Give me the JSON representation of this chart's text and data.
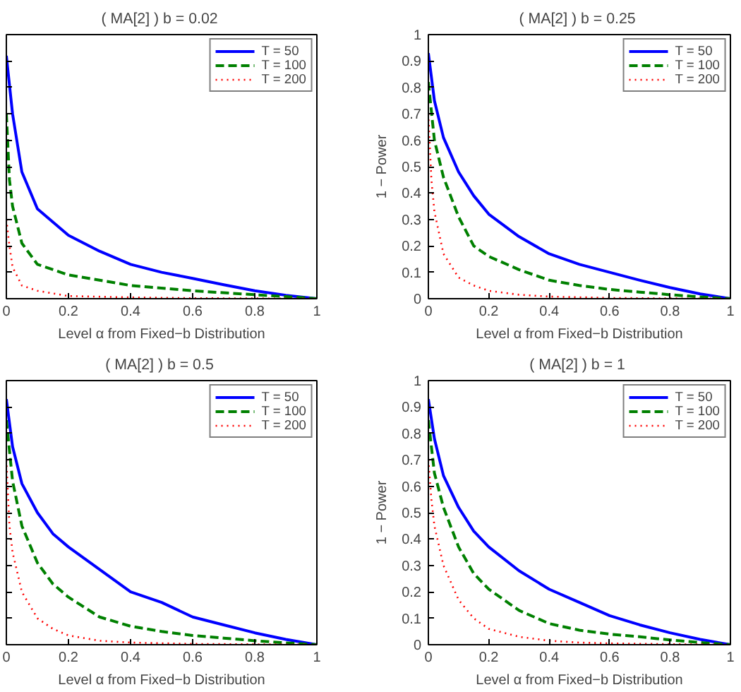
{
  "chart_data": [
    {
      "type": "line",
      "title": "( MA[2] )  b = 0.02",
      "xlabel": "Level α from Fixed−b Distribution",
      "xlim": [
        0,
        1
      ],
      "ylim": [
        0,
        1
      ],
      "xticks": [
        0,
        0.2,
        0.4,
        0.6,
        0.8,
        1
      ],
      "yticks": [
        0,
        0.1,
        0.2,
        0.3,
        0.4,
        0.5,
        0.6,
        0.7,
        0.8,
        0.9,
        1
      ],
      "tick_labels": "x",
      "legend": "top right",
      "grid": false,
      "series": [
        {
          "name": "T = 50",
          "color": "#0000ff",
          "line_style": "solid",
          "x": [
            0,
            0.02,
            0.05,
            0.1,
            0.15,
            0.2,
            0.3,
            0.4,
            0.5,
            0.6,
            0.7,
            0.8,
            0.9,
            1
          ],
          "values": [
            0.92,
            0.7,
            0.48,
            0.34,
            0.29,
            0.24,
            0.18,
            0.13,
            0.1,
            0.077,
            0.053,
            0.03,
            0.013,
            0
          ]
        },
        {
          "name": "T = 100",
          "color": "#008000",
          "line_style": "dashed",
          "x": [
            0,
            0.01,
            0.02,
            0.05,
            0.1,
            0.2,
            0.3,
            0.4,
            0.6,
            0.8,
            0.9,
            1
          ],
          "values": [
            0.7,
            0.45,
            0.35,
            0.21,
            0.13,
            0.09,
            0.07,
            0.05,
            0.03,
            0.015,
            0.008,
            0
          ]
        },
        {
          "name": "T = 200",
          "color": "#ff0000",
          "line_style": "dotted",
          "x": [
            0,
            0.01,
            0.02,
            0.05,
            0.1,
            0.2,
            0.4,
            0.6,
            1
          ],
          "values": [
            0.3,
            0.2,
            0.12,
            0.05,
            0.03,
            0.01,
            0.005,
            0.002,
            0
          ]
        }
      ]
    },
    {
      "type": "line",
      "title": "( MA[2] )  b = 0.25",
      "xlabel": "Level α from Fixed−b Distribution",
      "ylabel": "1 − Power",
      "xlim": [
        0,
        1
      ],
      "ylim": [
        0,
        1
      ],
      "xticks": [
        0,
        0.2,
        0.4,
        0.6,
        0.8,
        1
      ],
      "yticks": [
        0,
        0.1,
        0.2,
        0.3,
        0.4,
        0.5,
        0.6,
        0.7,
        0.8,
        0.9,
        1
      ],
      "legend": "top right",
      "grid": false,
      "series": [
        {
          "name": "T = 50",
          "color": "#0000ff",
          "line_style": "solid",
          "x": [
            0,
            0.02,
            0.05,
            0.1,
            0.15,
            0.2,
            0.3,
            0.4,
            0.5,
            0.6,
            0.7,
            0.8,
            0.9,
            1
          ],
          "values": [
            0.93,
            0.75,
            0.61,
            0.48,
            0.39,
            0.32,
            0.235,
            0.17,
            0.13,
            0.1,
            0.07,
            0.042,
            0.018,
            0
          ]
        },
        {
          "name": "T = 100",
          "color": "#008000",
          "line_style": "dashed",
          "x": [
            0,
            0.02,
            0.05,
            0.1,
            0.15,
            0.2,
            0.3,
            0.4,
            0.5,
            0.6,
            0.7,
            0.8,
            0.9,
            1
          ],
          "values": [
            0.82,
            0.6,
            0.46,
            0.31,
            0.2,
            0.16,
            0.11,
            0.07,
            0.05,
            0.035,
            0.025,
            0.015,
            0.007,
            0
          ]
        },
        {
          "name": "T = 200",
          "color": "#ff0000",
          "line_style": "dotted",
          "x": [
            0,
            0.01,
            0.02,
            0.05,
            0.1,
            0.15,
            0.2,
            0.3,
            0.4,
            0.6,
            0.8,
            1
          ],
          "values": [
            0.7,
            0.45,
            0.33,
            0.17,
            0.08,
            0.05,
            0.03,
            0.015,
            0.008,
            0.003,
            0.001,
            0
          ]
        }
      ]
    },
    {
      "type": "line",
      "title": "( MA[2] )  b = 0.5",
      "xlabel": "Level α from Fixed−b Distribution",
      "xlim": [
        0,
        1
      ],
      "ylim": [
        0,
        1
      ],
      "xticks": [
        0,
        0.2,
        0.4,
        0.6,
        0.8,
        1
      ],
      "yticks": [
        0,
        0.1,
        0.2,
        0.3,
        0.4,
        0.5,
        0.6,
        0.7,
        0.8,
        0.9,
        1
      ],
      "tick_labels": "x",
      "legend": "top right",
      "grid": false,
      "series": [
        {
          "name": "T = 50",
          "color": "#0000ff",
          "line_style": "solid",
          "x": [
            0,
            0.02,
            0.05,
            0.1,
            0.15,
            0.2,
            0.3,
            0.4,
            0.5,
            0.6,
            0.7,
            0.8,
            0.9,
            1
          ],
          "values": [
            0.93,
            0.75,
            0.61,
            0.5,
            0.42,
            0.37,
            0.285,
            0.2,
            0.16,
            0.105,
            0.075,
            0.045,
            0.02,
            0
          ]
        },
        {
          "name": "T = 100",
          "color": "#008000",
          "line_style": "dashed",
          "x": [
            0,
            0.02,
            0.05,
            0.1,
            0.15,
            0.2,
            0.3,
            0.4,
            0.5,
            0.6,
            0.7,
            0.8,
            0.9,
            1
          ],
          "values": [
            0.85,
            0.62,
            0.45,
            0.31,
            0.23,
            0.18,
            0.105,
            0.07,
            0.05,
            0.035,
            0.025,
            0.015,
            0.007,
            0
          ]
        },
        {
          "name": "T = 200",
          "color": "#ff0000",
          "line_style": "dotted",
          "x": [
            0,
            0.01,
            0.02,
            0.05,
            0.1,
            0.15,
            0.2,
            0.3,
            0.4,
            0.6,
            1
          ],
          "values": [
            0.7,
            0.45,
            0.35,
            0.2,
            0.1,
            0.06,
            0.035,
            0.015,
            0.008,
            0.003,
            0
          ]
        }
      ]
    },
    {
      "type": "line",
      "title": "( MA[2] )  b = 1",
      "xlabel": "Level α from Fixed−b Distribution",
      "ylabel": "1 − Power",
      "xlim": [
        0,
        1
      ],
      "ylim": [
        0,
        1
      ],
      "xticks": [
        0,
        0.2,
        0.4,
        0.6,
        0.8,
        1
      ],
      "yticks": [
        0,
        0.1,
        0.2,
        0.3,
        0.4,
        0.5,
        0.6,
        0.7,
        0.8,
        0.9,
        1
      ],
      "legend": "top right",
      "grid": false,
      "series": [
        {
          "name": "T = 50",
          "color": "#0000ff",
          "line_style": "solid",
          "x": [
            0,
            0.02,
            0.05,
            0.1,
            0.15,
            0.2,
            0.3,
            0.4,
            0.5,
            0.6,
            0.7,
            0.8,
            0.9,
            1
          ],
          "values": [
            0.93,
            0.78,
            0.64,
            0.52,
            0.43,
            0.37,
            0.28,
            0.21,
            0.16,
            0.11,
            0.075,
            0.045,
            0.02,
            0
          ]
        },
        {
          "name": "T = 100",
          "color": "#008000",
          "line_style": "dashed",
          "x": [
            0,
            0.02,
            0.05,
            0.1,
            0.15,
            0.2,
            0.3,
            0.4,
            0.5,
            0.6,
            0.7,
            0.8,
            0.9,
            1
          ],
          "values": [
            0.85,
            0.65,
            0.52,
            0.37,
            0.27,
            0.21,
            0.13,
            0.08,
            0.055,
            0.04,
            0.03,
            0.018,
            0.008,
            0
          ]
        },
        {
          "name": "T = 200",
          "color": "#ff0000",
          "line_style": "dotted",
          "x": [
            0,
            0.01,
            0.02,
            0.05,
            0.1,
            0.15,
            0.2,
            0.3,
            0.4,
            0.5,
            0.6,
            0.8,
            1
          ],
          "values": [
            0.7,
            0.55,
            0.45,
            0.3,
            0.17,
            0.1,
            0.06,
            0.03,
            0.015,
            0.008,
            0.005,
            0.002,
            0
          ]
        }
      ]
    }
  ]
}
